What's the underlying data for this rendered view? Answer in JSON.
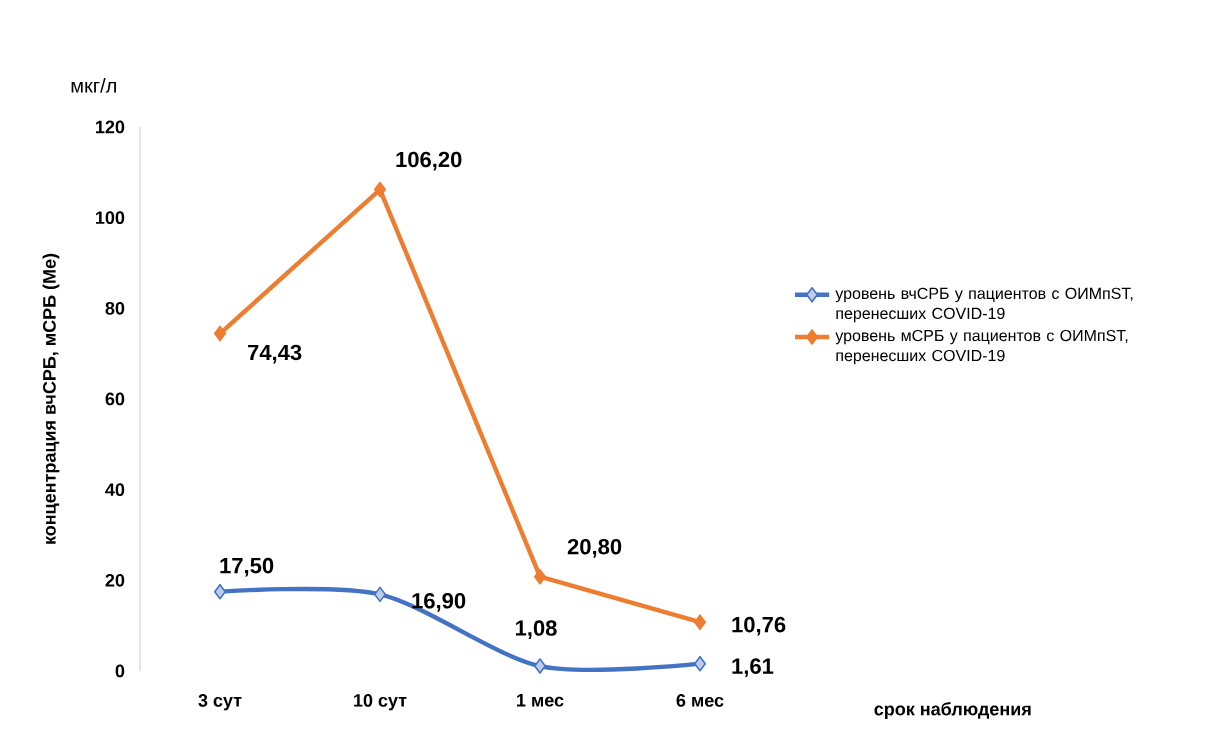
{
  "chart_data": {
    "type": "line",
    "ylabel": "концентрация вчСРБ, мСРБ (Ме)",
    "annotations": [
      "мкг/л",
      "срок наблюдения"
    ],
    "categories": [
      "3 сут",
      "10 сут",
      "1 мес",
      "6 мес"
    ],
    "ylim": [
      0,
      120
    ],
    "yticks": [
      0,
      20,
      40,
      60,
      80,
      100,
      120
    ],
    "legend": "right",
    "marker": "diamond",
    "line_style": "solid",
    "series": [
      {
        "name": "уровень вчСРБ у пациентов с ОИМпST, перенесших COVID-19",
        "color": "#4472c4",
        "values": [
          17.5,
          16.9,
          1.08,
          1.61
        ],
        "value_labels": [
          "17,50",
          "16,90",
          "1,08",
          "1,61"
        ]
      },
      {
        "name": "уровень мСРБ у пациентов с ОИМпST, перенесших COVID-19",
        "color": "#ed7d31",
        "values": [
          74.43,
          106.2,
          20.8,
          10.76
        ],
        "value_labels": [
          "74,43",
          "106,20",
          "20,80",
          "10,76"
        ]
      }
    ]
  }
}
